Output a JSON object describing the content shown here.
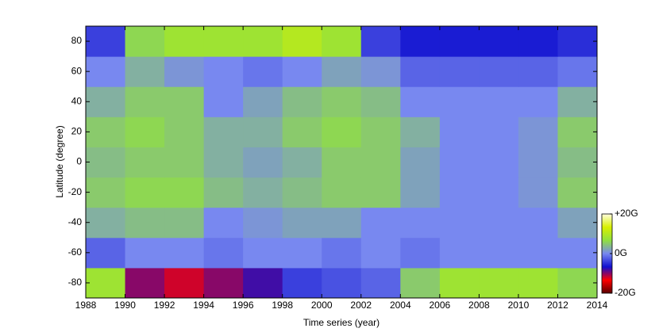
{
  "chart_data": {
    "type": "heatmap",
    "xlabel": "Time series (year)",
    "ylabel": "Latitude (degree)",
    "x": [
      1989,
      1991,
      1993,
      1995,
      1997,
      1999,
      2001,
      2003,
      2005,
      2007,
      2009,
      2011,
      2013
    ],
    "y": [
      -80,
      -60,
      -40,
      -20,
      0,
      20,
      40,
      60,
      80
    ],
    "values": [
      [
        8,
        -10,
        -12,
        -10,
        -8,
        -4,
        -3,
        -2,
        5,
        8,
        8,
        8,
        6
      ],
      [
        -2,
        0,
        0,
        -1,
        0,
        0,
        -1,
        0,
        -1,
        0,
        0,
        0,
        0
      ],
      [
        3,
        4,
        4,
        0,
        1,
        2,
        2,
        0,
        0,
        0,
        0,
        0,
        2
      ],
      [
        5,
        6,
        6,
        4,
        3,
        4,
        5,
        5,
        2,
        0,
        0,
        1,
        5
      ],
      [
        4,
        5,
        5,
        3,
        2,
        3,
        5,
        5,
        2,
        0,
        0,
        1,
        4
      ],
      [
        5,
        6,
        5,
        3,
        3,
        5,
        6,
        5,
        3,
        0,
        0,
        1,
        5
      ],
      [
        3,
        5,
        5,
        0,
        2,
        4,
        5,
        4,
        0,
        0,
        0,
        0,
        3
      ],
      [
        0,
        3,
        1,
        0,
        -1,
        0,
        2,
        1,
        -2,
        -2,
        -2,
        -2,
        -1
      ],
      [
        -4,
        6,
        8,
        8,
        8,
        10,
        8,
        -4,
        -6,
        -6,
        -6,
        -6,
        -5
      ]
    ],
    "xlim": [
      1988,
      2014
    ],
    "xticks": [
      1988,
      1990,
      1992,
      1994,
      1996,
      1998,
      2000,
      2002,
      2004,
      2006,
      2008,
      2010,
      2012,
      2014
    ],
    "ylim": [
      -90,
      90
    ],
    "yticks": [
      -80,
      -60,
      -40,
      -20,
      0,
      20,
      40,
      60,
      80
    ],
    "clim": [
      -20,
      20
    ],
    "cticks": [
      {
        "value": -20,
        "label": "-20G"
      },
      {
        "value": 0,
        "label": "0G"
      },
      {
        "value": 20,
        "label": "+20G"
      }
    ],
    "colorscale": [
      "#5a0000",
      "#ff0000",
      "#1010d0",
      "#7888f0",
      "#90e040",
      "#d8f000",
      "#ffffe0"
    ]
  }
}
